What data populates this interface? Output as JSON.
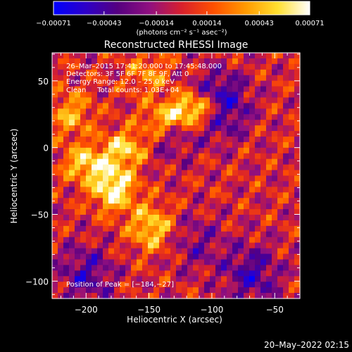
{
  "chart_data": {
    "type": "heatmap",
    "title": "Reconstructed RHESSI Image",
    "xlabel": "Heliocentric X (arcsec)",
    "ylabel": "Heliocentric Y (arcsec)",
    "xlim": [
      -227,
      -30
    ],
    "ylim": [
      -113,
      71
    ],
    "x_ticks": [
      -200,
      -150,
      -100,
      -50
    ],
    "x_tick_labels": [
      "−200",
      "−150",
      "−100",
      "−50"
    ],
    "y_ticks": [
      50,
      0,
      -50,
      -100
    ],
    "y_tick_labels": [
      "50",
      "0",
      "−50",
      "−100"
    ],
    "colorbar": {
      "range": [
        -0.00071,
        0.00071
      ],
      "ticks": [
        -0.00071,
        -0.00043,
        -0.00014,
        0.00014,
        0.00043,
        0.00071
      ],
      "tick_labels": [
        "−0.00071",
        "−0.00043",
        "−0.00014",
        "0.00014",
        "0.00043",
        "0.00071"
      ],
      "units": "(photons cm⁻² s⁻¹ asec⁻²)",
      "colors": [
        "#0000ff",
        "#2d00c8",
        "#550080",
        "#901080",
        "#d8202c",
        "#ff5000",
        "#ff9a00",
        "#ffe030",
        "#ffffff"
      ]
    },
    "annotations": {
      "time_range": "26–Mar–2015 17:41:20.000 to 17:45:48.000",
      "detectors": "Detectors: 3F 5F 6F 7F 8F 9F, Att 0",
      "energy": "Energy Range: 12.0 – 25.0 keV",
      "clean": "Clean     Total counts: 1.03E+04",
      "peak": "Position of Peak = [−184,−27]"
    },
    "peak_position": [
      -184,
      -27
    ],
    "features": [
      {
        "type": "positive_ridge",
        "x": [
          -200,
          -168,
          -140,
          -120,
          -105
        ],
        "y": [
          -12,
          0,
          20,
          28,
          30
        ]
      },
      {
        "type": "positive_blob",
        "x": -178,
        "y": -30,
        "level": 1.0
      },
      {
        "type": "positive_blob",
        "x": -148,
        "y": -60,
        "level": 0.75
      },
      {
        "type": "positive_blob",
        "x": -212,
        "y": 25,
        "level": 0.55
      },
      {
        "type": "positive_blob",
        "x": -150,
        "y": 55,
        "level": 0.45
      },
      {
        "type": "negative_blob",
        "x": -95,
        "y": 32,
        "level": -1.0
      },
      {
        "type": "negative_blob",
        "x": -135,
        "y": 12,
        "level": -0.45
      },
      {
        "type": "negative_blob",
        "x": -200,
        "y": -95,
        "level": -0.55
      },
      {
        "type": "negative_blob",
        "x": -68,
        "y": -95,
        "level": -0.6
      },
      {
        "type": "negative_blob",
        "x": -112,
        "y": -72,
        "level": -0.35
      }
    ]
  },
  "footer": {
    "date": "20–May–2022 02:15"
  }
}
